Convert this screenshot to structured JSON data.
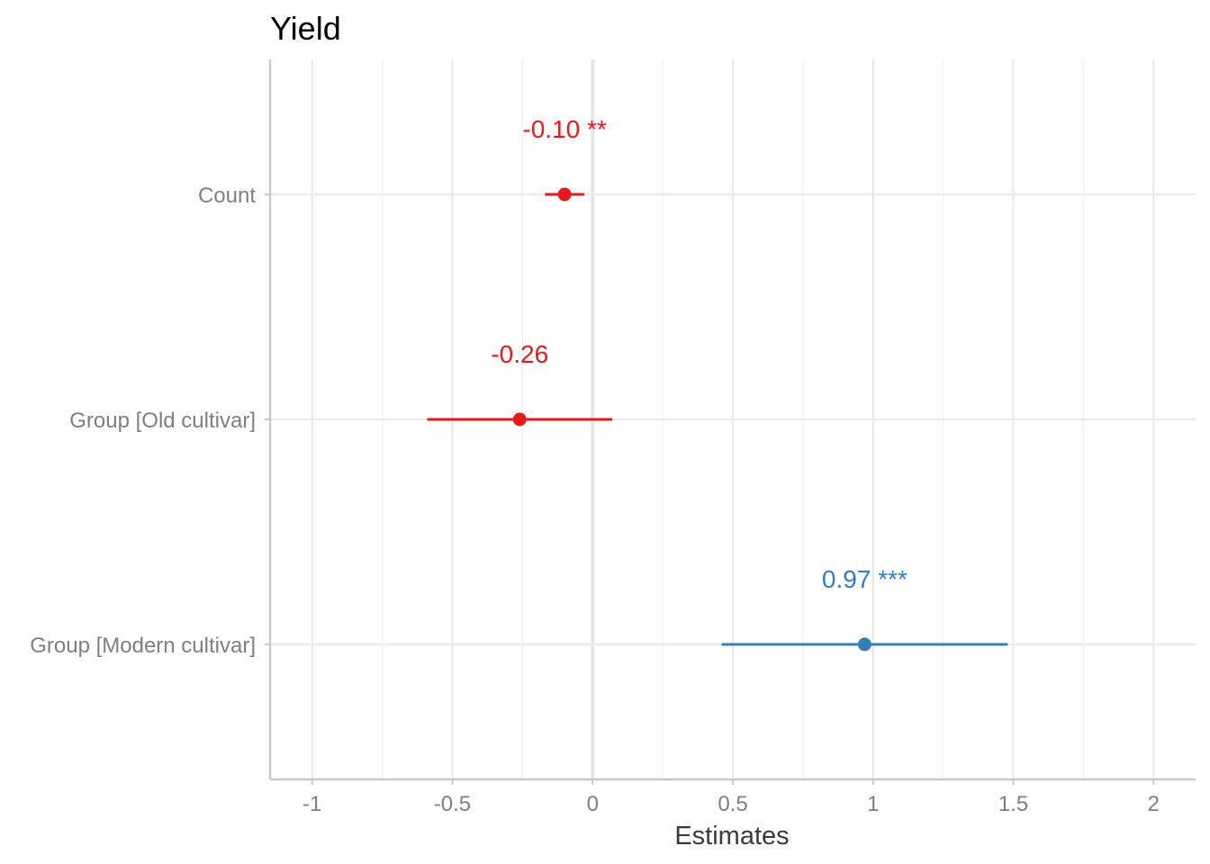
{
  "chart_data": {
    "type": "forest",
    "title": "Yield",
    "xlabel": "Estimates",
    "ylabel": "",
    "xlim": [
      -1.15,
      2.15
    ],
    "x_ticks": [
      -1,
      -0.5,
      0,
      0.5,
      1,
      1.5,
      2
    ],
    "x_tick_labels": [
      "-1",
      "-0.5",
      "0",
      "0.5",
      "1",
      "1.5",
      "2"
    ],
    "grid": true,
    "terms": [
      {
        "label": "Count",
        "estimate": -0.1,
        "ci_low": -0.17,
        "ci_high": -0.03,
        "text": "-0.10 **",
        "color": "#e41a1c"
      },
      {
        "label": "Group [Old cultivar]",
        "estimate": -0.26,
        "ci_low": -0.59,
        "ci_high": 0.07,
        "text": "-0.26",
        "color": "#e41a1c"
      },
      {
        "label": "Group [Modern cultivar]",
        "estimate": 0.97,
        "ci_low": 0.46,
        "ci_high": 1.48,
        "text": "0.97 ***",
        "color": "#377eb8"
      }
    ]
  }
}
